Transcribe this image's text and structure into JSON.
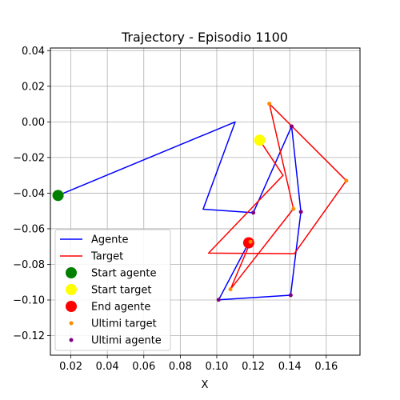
{
  "chart_data": {
    "type": "line",
    "title": "Trajectory - Episodio 1100",
    "xlabel": "X",
    "ylabel": "",
    "xlim": [
      0.0088,
      0.1785
    ],
    "ylim": [
      -0.131,
      0.0415
    ],
    "xticks": [
      0.02,
      0.04,
      0.06,
      0.08,
      0.1,
      0.12,
      0.14,
      0.16
    ],
    "xtick_labels": [
      "0.02",
      "0.04",
      "0.06",
      "0.08",
      "0.10",
      "0.12",
      "0.14",
      "0.16"
    ],
    "yticks": [
      0.04,
      0.02,
      0.0,
      -0.02,
      -0.04,
      -0.06,
      -0.08,
      -0.1,
      -0.12
    ],
    "ytick_labels": [
      "0.04",
      "0.02",
      "0.00",
      "−0.02",
      "−0.04",
      "−0.06",
      "−0.08",
      "−0.10",
      "−0.12"
    ],
    "grid": true,
    "legend_position": "lower-left",
    "series": [
      {
        "name": "Agente",
        "kind": "line",
        "color": "#0000ff",
        "points": [
          [
            0.013,
            -0.0413
          ],
          [
            0.1101,
            0.0
          ],
          [
            0.0925,
            -0.049
          ],
          [
            0.12,
            -0.051
          ],
          [
            0.141,
            -0.0025
          ],
          [
            0.1461,
            -0.0505
          ],
          [
            0.1405,
            -0.0973
          ],
          [
            0.101,
            -0.0999
          ],
          [
            0.1175,
            -0.0679
          ]
        ]
      },
      {
        "name": "Target",
        "kind": "line",
        "color": "#ff0000",
        "points": [
          [
            0.1235,
            -0.0103
          ],
          [
            0.1363,
            -0.03
          ],
          [
            0.0955,
            -0.0737
          ],
          [
            0.1425,
            -0.074
          ],
          [
            0.171,
            -0.033
          ],
          [
            0.1412,
            -0.0025
          ],
          [
            0.1288,
            0.0102
          ],
          [
            0.142,
            -0.0488
          ],
          [
            0.1075,
            -0.094
          ],
          [
            0.1185,
            -0.0673
          ]
        ]
      },
      {
        "name": "Start agente",
        "kind": "marker",
        "color": "#008000",
        "size": 7,
        "points": [
          [
            0.013,
            -0.0413
          ]
        ]
      },
      {
        "name": "Start target",
        "kind": "marker",
        "color": "#ffff00",
        "size": 7,
        "points": [
          [
            0.1235,
            -0.0103
          ]
        ]
      },
      {
        "name": "End agente",
        "kind": "marker",
        "color": "#ff0000",
        "size": 7,
        "points": [
          [
            0.1175,
            -0.0679
          ]
        ]
      },
      {
        "name": "Ultimi target",
        "kind": "marker",
        "color": "#ff8c00",
        "size": 2.5,
        "points": [
          [
            0.1288,
            0.0102
          ],
          [
            0.171,
            -0.033
          ],
          [
            0.142,
            -0.0488
          ],
          [
            0.1075,
            -0.094
          ],
          [
            0.1185,
            -0.0673
          ]
        ]
      },
      {
        "name": "Ultimi agente",
        "kind": "marker",
        "color": "#800080",
        "size": 2.5,
        "points": [
          [
            0.12,
            -0.051
          ],
          [
            0.141,
            -0.0025
          ],
          [
            0.1461,
            -0.0505
          ],
          [
            0.1405,
            -0.0973
          ],
          [
            0.101,
            -0.0999
          ]
        ]
      }
    ]
  }
}
